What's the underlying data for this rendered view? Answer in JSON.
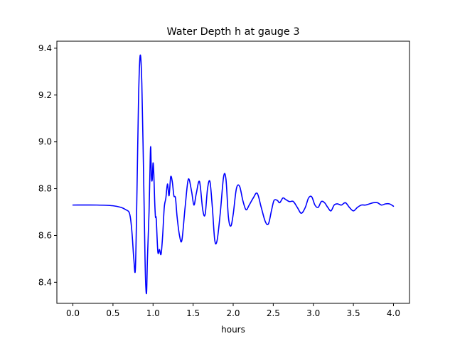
{
  "chart_data": {
    "type": "line",
    "title": "Water Depth h at gauge 3",
    "xlabel": "hours",
    "ylabel": "",
    "xlim": [
      -0.2,
      4.2
    ],
    "ylim": [
      8.31,
      9.43
    ],
    "xticks": [
      0.0,
      0.5,
      1.0,
      1.5,
      2.0,
      2.5,
      3.0,
      3.5,
      4.0
    ],
    "xtick_labels": [
      "0.0",
      "0.5",
      "1.0",
      "1.5",
      "2.0",
      "2.5",
      "3.0",
      "3.5",
      "4.0"
    ],
    "yticks": [
      8.4,
      8.6,
      8.8,
      9.0,
      9.2,
      9.4
    ],
    "ytick_labels": [
      "8.4",
      "8.6",
      "8.8",
      "9.0",
      "9.2",
      "9.4"
    ],
    "grid": false,
    "color": "#0000ff",
    "series": [
      {
        "name": "",
        "x": [
          0.0,
          0.3,
          0.5,
          0.6,
          0.66,
          0.7,
          0.72,
          0.74,
          0.76,
          0.78,
          0.8,
          0.82,
          0.84,
          0.86,
          0.88,
          0.9,
          0.91,
          0.92,
          0.93,
          0.95,
          0.96,
          0.97,
          0.98,
          0.99,
          1.0,
          1.01,
          1.02,
          1.03,
          1.04,
          1.06,
          1.08,
          1.1,
          1.12,
          1.14,
          1.16,
          1.18,
          1.2,
          1.22,
          1.24,
          1.26,
          1.28,
          1.3,
          1.33,
          1.36,
          1.4,
          1.44,
          1.48,
          1.51,
          1.54,
          1.58,
          1.62,
          1.65,
          1.68,
          1.71,
          1.74,
          1.77,
          1.8,
          1.84,
          1.88,
          1.91,
          1.94,
          1.97,
          2.0,
          2.04,
          2.08,
          2.12,
          2.16,
          2.2,
          2.25,
          2.3,
          2.35,
          2.4,
          2.44,
          2.48,
          2.51,
          2.55,
          2.58,
          2.62,
          2.65,
          2.7,
          2.75,
          2.8,
          2.85,
          2.9,
          2.94,
          2.98,
          3.02,
          3.06,
          3.1,
          3.14,
          3.18,
          3.22,
          3.26,
          3.3,
          3.35,
          3.4,
          3.45,
          3.5,
          3.55,
          3.6,
          3.65,
          3.7,
          3.75,
          3.8,
          3.85,
          3.9,
          3.95,
          4.0
        ],
        "y": [
          8.73,
          8.73,
          8.727,
          8.72,
          8.71,
          8.7,
          8.67,
          8.6,
          8.5,
          8.46,
          8.8,
          9.2,
          9.37,
          9.25,
          8.9,
          8.5,
          8.38,
          8.36,
          8.5,
          8.7,
          8.85,
          8.98,
          8.85,
          8.84,
          8.91,
          8.86,
          8.75,
          8.68,
          8.67,
          8.53,
          8.54,
          8.52,
          8.6,
          8.72,
          8.76,
          8.82,
          8.77,
          8.85,
          8.83,
          8.77,
          8.76,
          8.68,
          8.6,
          8.58,
          8.72,
          8.84,
          8.79,
          8.73,
          8.78,
          8.83,
          8.71,
          8.69,
          8.8,
          8.83,
          8.72,
          8.58,
          8.58,
          8.7,
          8.85,
          8.84,
          8.68,
          8.64,
          8.69,
          8.8,
          8.81,
          8.75,
          8.71,
          8.73,
          8.76,
          8.78,
          8.72,
          8.66,
          8.65,
          8.71,
          8.75,
          8.75,
          8.74,
          8.76,
          8.755,
          8.745,
          8.745,
          8.72,
          8.695,
          8.72,
          8.76,
          8.765,
          8.73,
          8.72,
          8.745,
          8.74,
          8.72,
          8.705,
          8.73,
          8.735,
          8.73,
          8.74,
          8.72,
          8.705,
          8.72,
          8.73,
          8.73,
          8.735,
          8.74,
          8.74,
          8.73,
          8.735,
          8.735,
          8.725
        ]
      }
    ]
  }
}
